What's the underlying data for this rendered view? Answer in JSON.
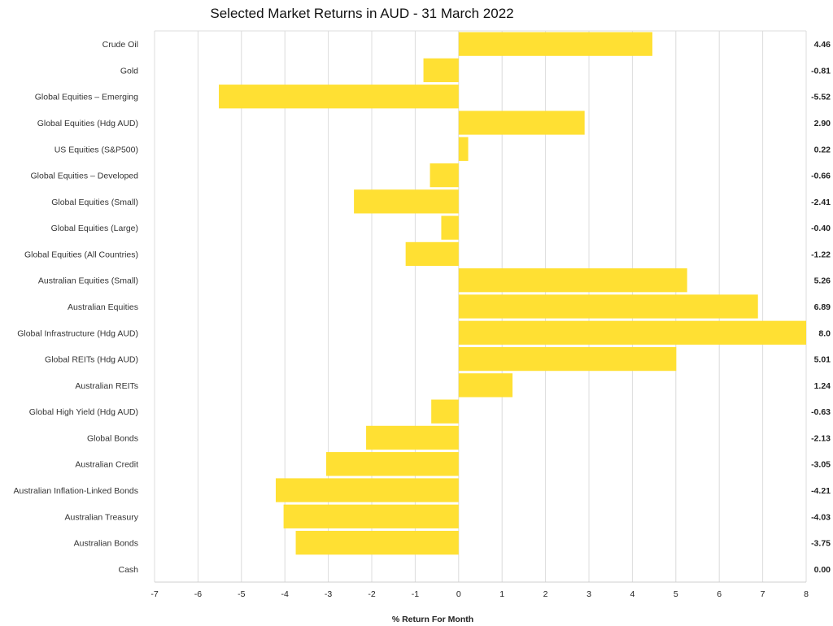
{
  "chart_data": {
    "type": "bar",
    "orientation": "horizontal",
    "title": "Selected Market Returns in AUD - 31 March 2022",
    "xlabel": "% Return For Month",
    "ylabel": "",
    "xlim": [
      -7,
      8
    ],
    "xticks": [
      "-7",
      "-6",
      "-5",
      "-4",
      "-3",
      "-2",
      "-1",
      "0",
      "1",
      "2",
      "3",
      "4",
      "5",
      "6",
      "7",
      "8"
    ],
    "grid": true,
    "bar_color": "#FFE033",
    "categories": [
      "Crude Oil",
      "Gold",
      "Global Equities – Emerging",
      "Global Equities (Hdg AUD)",
      "US Equities (S&P500)",
      "Global Equities – Developed",
      "Global Equities (Small)",
      "Global Equities (Large)",
      "Global Equities (All Countries)",
      "Australian Equities (Small)",
      "Australian Equities",
      "Global Infrastructure (Hdg AUD)",
      "Global REITs (Hdg AUD)",
      "Australian REITs",
      "Global High Yield (Hdg AUD)",
      "Global Bonds",
      "Australian Credit",
      "Australian Inflation-Linked Bonds",
      "Australian Treasury",
      "Australian Bonds",
      "Cash"
    ],
    "values": [
      4.46,
      -0.81,
      -5.52,
      2.9,
      0.22,
      -0.66,
      -2.41,
      -0.4,
      -1.22,
      5.26,
      6.89,
      8.0,
      5.01,
      1.24,
      -0.63,
      -2.13,
      -3.05,
      -4.21,
      -4.03,
      -3.75,
      0.0
    ],
    "value_labels": [
      "4.46",
      "-0.81",
      "-5.52",
      "2.90",
      "0.22",
      "-0.66",
      "-2.41",
      "-0.40",
      "-1.22",
      "5.26",
      "6.89",
      "8.0",
      "5.01",
      "1.24",
      "-0.63",
      "-2.13",
      "-3.05",
      "-4.21",
      "-4.03",
      "-3.75",
      "0.00"
    ]
  }
}
